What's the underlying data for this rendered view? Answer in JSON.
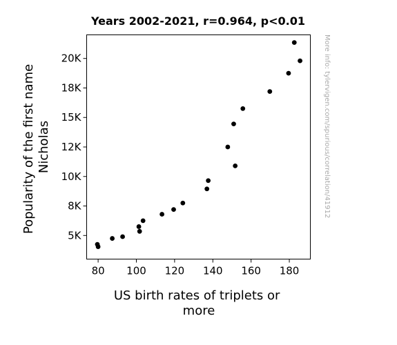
{
  "chart_data": {
    "type": "scatter",
    "title": "Years 2002-2021, r=0.964, p<0.01",
    "xlabel_lines": [
      "US birth rates of triplets or",
      "more"
    ],
    "ylabel_lines": [
      "Popularity of the first name",
      "Nicholas"
    ],
    "xlim": [
      74,
      191
    ],
    "ylim": [
      3000,
      22000
    ],
    "x_ticks": [
      80,
      100,
      120,
      140,
      160,
      180
    ],
    "x_tick_labels": [
      "80",
      "100",
      "120",
      "140",
      "160",
      "180"
    ],
    "y_ticks": [
      5000,
      7500,
      10000,
      12500,
      15000,
      17500,
      20000
    ],
    "y_tick_labels": [
      "5K",
      "8K",
      "10K",
      "12K",
      "15K",
      "18K",
      "20K"
    ],
    "grid": false,
    "legend": "none",
    "marker_color": "#000000",
    "points": [
      {
        "x": 79.6,
        "y": 4250
      },
      {
        "x": 80.0,
        "y": 4050
      },
      {
        "x": 87.4,
        "y": 4750
      },
      {
        "x": 92.8,
        "y": 4900
      },
      {
        "x": 101.3,
        "y": 5750
      },
      {
        "x": 101.7,
        "y": 5350
      },
      {
        "x": 103.5,
        "y": 6250
      },
      {
        "x": 113.4,
        "y": 6800
      },
      {
        "x": 119.5,
        "y": 7200
      },
      {
        "x": 124.3,
        "y": 7750
      },
      {
        "x": 136.9,
        "y": 8950
      },
      {
        "x": 137.6,
        "y": 9650
      },
      {
        "x": 147.8,
        "y": 12500
      },
      {
        "x": 150.9,
        "y": 14450
      },
      {
        "x": 151.7,
        "y": 10900
      },
      {
        "x": 155.7,
        "y": 15750
      },
      {
        "x": 169.8,
        "y": 17200
      },
      {
        "x": 179.6,
        "y": 18750
      },
      {
        "x": 182.6,
        "y": 21350
      },
      {
        "x": 185.6,
        "y": 19800
      }
    ]
  },
  "watermark": "More info: tylervigen.com/spurious/correlation/41912"
}
